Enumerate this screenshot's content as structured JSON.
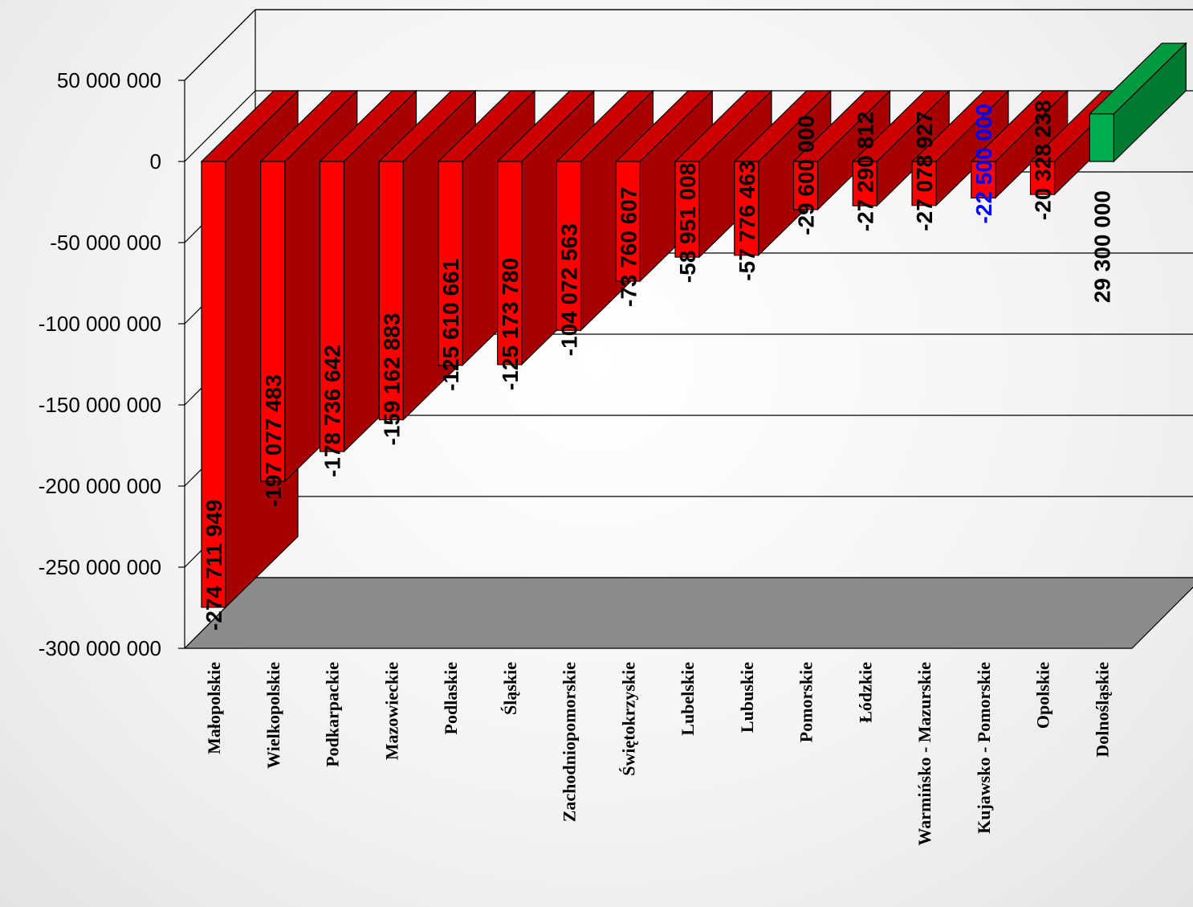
{
  "chart_data": {
    "type": "bar",
    "title": "",
    "xlabel": "",
    "ylabel": "",
    "ylim": [
      -300000000,
      50000000
    ],
    "yticks": [
      {
        "value": 50000000,
        "label": "50 000 000"
      },
      {
        "value": 0,
        "label": "0"
      },
      {
        "value": -50000000,
        "label": "-50 000 000"
      },
      {
        "value": -100000000,
        "label": "-100 000 000"
      },
      {
        "value": -150000000,
        "label": "-150 000 000"
      },
      {
        "value": -200000000,
        "label": "-200 000 000"
      },
      {
        "value": -250000000,
        "label": "-250 000 000"
      },
      {
        "value": -300000000,
        "label": "-300 000 000"
      }
    ],
    "grid": true,
    "style": "3d",
    "categories": [
      "Małopolskie",
      "Wielkopolskie",
      "Podkarpackie",
      "Mazowieckie",
      "Podlaskie",
      "Śląskie",
      "Zachodniopomorskie",
      "Świętokrzyskie",
      "Lubelskie",
      "Lubuskie",
      "Pomorskie",
      "Łódzkie",
      "Warmińsko - Mazurskie",
      "Kujawsko - Pomorskie",
      "Opolskie",
      "Dolnośląskie"
    ],
    "values": [
      -274711949,
      -197077483,
      -178736642,
      -159162883,
      -125610661,
      -125173780,
      -104072563,
      -73760607,
      -58951008,
      -57776463,
      -29600000,
      -27290812,
      -27078927,
      -22500000,
      -20328238,
      29300000
    ],
    "data_labels": [
      "-274 711 949",
      "-197 077 483",
      "-178 736 642",
      "-159 162 883",
      "-125 610 661",
      "-125 173 780",
      "-104 072 563",
      "-73 760 607",
      "-58 951 008",
      "-57 776 463",
      "-29 600 000",
      "-27 290 812",
      "-27 078 927",
      "-22 500 000",
      "-20 328 238",
      "29 300 000"
    ],
    "highlight_label_index": 13,
    "colors": {
      "negative_front": "#ff0000",
      "negative_side": "#a80000",
      "negative_top": "#cc0000",
      "positive_front": "#00b050",
      "positive_side": "#007a33",
      "positive_top": "#009a40",
      "floor": "#8c8c8c",
      "highlight_label": "#0000ff",
      "label": "#000000"
    }
  }
}
